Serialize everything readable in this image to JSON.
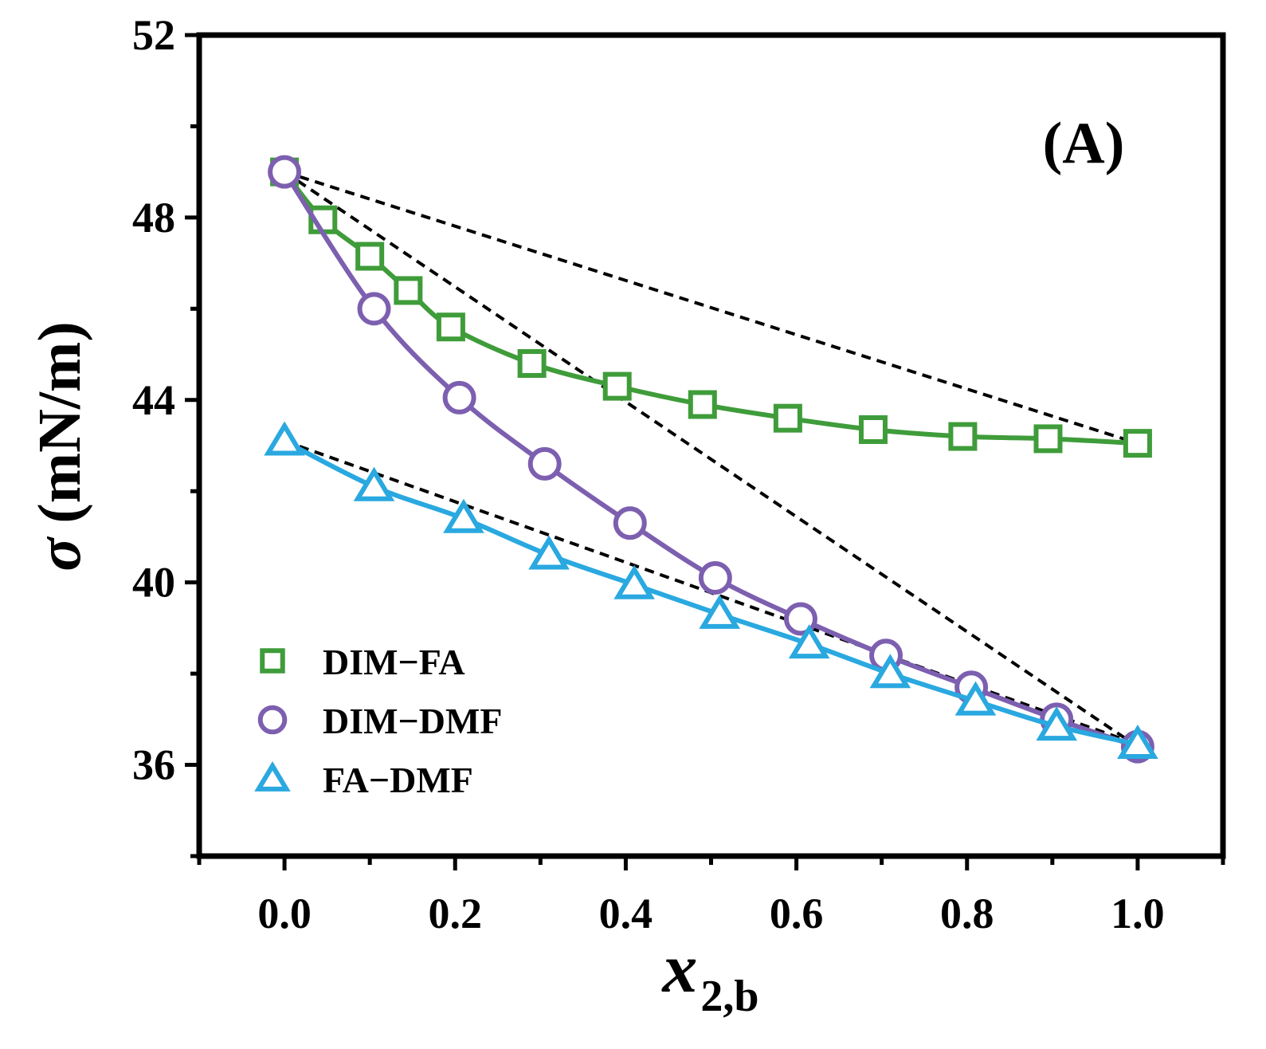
{
  "chart_data": {
    "type": "line",
    "panel_label": "(A)",
    "ylabel_symbol": "σ",
    "ylabel_unit": "(mN/m)",
    "xlabel_main": "x",
    "xlabel_sub": "2,b",
    "xlim": [
      -0.1,
      1.1
    ],
    "ylim": [
      34,
      52
    ],
    "xticks": [
      0.0,
      0.2,
      0.4,
      0.6,
      0.8,
      1.0
    ],
    "xtick_labels": [
      "0.0",
      "0.2",
      "0.4",
      "0.6",
      "0.8",
      "1.0"
    ],
    "yticks": [
      36,
      40,
      44,
      48,
      52
    ],
    "ytick_labels": [
      "36",
      "40",
      "44",
      "48",
      "52"
    ],
    "legend_position": "bottom-left",
    "series": [
      {
        "name": "DIM−FA",
        "marker": "square",
        "color": "#3f9c3a",
        "x": [
          0.0,
          0.045,
          0.1,
          0.145,
          0.195,
          0.29,
          0.39,
          0.49,
          0.59,
          0.69,
          0.795,
          0.895,
          1.0
        ],
        "y": [
          49.0,
          47.95,
          47.15,
          46.4,
          45.6,
          44.8,
          44.3,
          43.9,
          43.6,
          43.35,
          43.2,
          43.15,
          43.05
        ]
      },
      {
        "name": "DIM−DMF",
        "marker": "circle",
        "color": "#7d5fb0",
        "x": [
          0.0,
          0.105,
          0.205,
          0.305,
          0.405,
          0.505,
          0.605,
          0.705,
          0.805,
          0.905,
          1.0
        ],
        "y": [
          49.0,
          46.0,
          44.05,
          42.6,
          41.3,
          40.1,
          39.2,
          38.4,
          37.7,
          37.0,
          36.4
        ]
      },
      {
        "name": "FA−DMF",
        "marker": "triangle",
        "color": "#2aa8e0",
        "x": [
          0.0,
          0.105,
          0.21,
          0.31,
          0.41,
          0.51,
          0.615,
          0.71,
          0.81,
          0.905,
          1.0
        ],
        "y": [
          43.1,
          42.1,
          41.4,
          40.6,
          39.95,
          39.3,
          38.65,
          38.0,
          37.4,
          36.85,
          36.45
        ]
      }
    ],
    "reference_lines": [
      {
        "name": "ideal-dim-fa",
        "x": [
          0.0,
          1.0
        ],
        "y": [
          49.0,
          43.05
        ]
      },
      {
        "name": "ideal-dim-dmf",
        "x": [
          0.0,
          1.0
        ],
        "y": [
          49.0,
          36.4
        ]
      },
      {
        "name": "ideal-fa-dmf",
        "x": [
          0.0,
          1.0
        ],
        "y": [
          43.1,
          36.45
        ]
      }
    ]
  }
}
